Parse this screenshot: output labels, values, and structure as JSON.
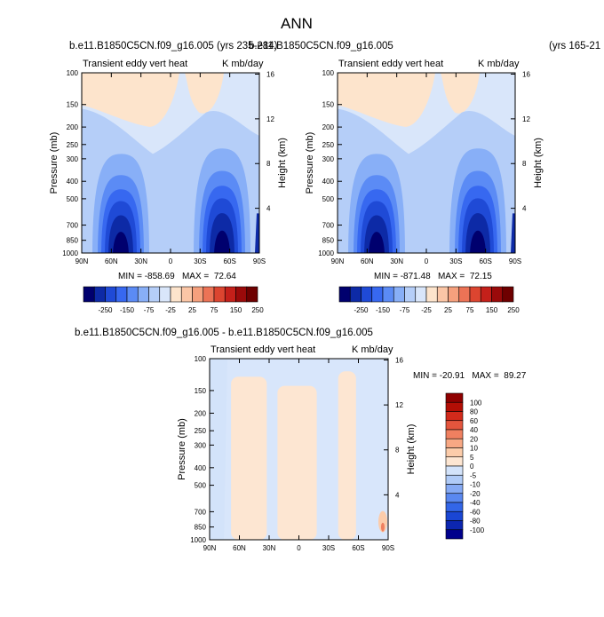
{
  "page_title": "ANN",
  "colors": {
    "main_scale": [
      "#00006e",
      "#0d2aa6",
      "#1f4ad6",
      "#3768f0",
      "#5b8bf5",
      "#88aff7",
      "#b5cef8",
      "#d9e6fa",
      "#fde4cc",
      "#fbc6a6",
      "#f5a07d",
      "#ec7356",
      "#dc4530",
      "#c4201a",
      "#9a0a0a",
      "#6e0000"
    ],
    "diff_scale": [
      "#00008c",
      "#0c26b0",
      "#1a46d4",
      "#3366e8",
      "#5a88f0",
      "#86aaf4",
      "#b0cbf7",
      "#d3e3fa",
      "#fde6d2",
      "#fcccaa",
      "#f8a884",
      "#ef8060",
      "#e4553d",
      "#d22a1b",
      "#b30e05",
      "#8f0000"
    ]
  },
  "chart_data": [
    {
      "type": "contour",
      "case_label": "b.e11.B1850C5CN.f09_g16.005 (yrs 235-284)",
      "subtitle_left": "Transient eddy vert heat",
      "subtitle_right": "K mb/day",
      "x_ticks": [
        "90N",
        "60N",
        "30N",
        "0",
        "30S",
        "60S",
        "90S"
      ],
      "y_label": "Pressure (mb)",
      "y_ticks": [
        "100",
        "150",
        "200",
        "250",
        "300",
        "400",
        "500",
        "700",
        "850",
        "1000"
      ],
      "y2_label": "Height (km)",
      "y2_ticks": [
        "16",
        "12",
        "8",
        "4"
      ],
      "min": -858.69,
      "max": 72.64,
      "min_max_text": "MIN = -858.69   MAX =  72.64",
      "colorbar_labels": [
        "-250",
        "-150",
        "-75",
        "-25",
        "25",
        "75",
        "150",
        "250"
      ]
    },
    {
      "type": "contour",
      "case_label": "b.e11.B1850C5CN.f09_g16.005",
      "case_years": "(yrs 165-21",
      "subtitle_left": "Transient eddy vert heat",
      "subtitle_right": "K mb/day",
      "x_ticks": [
        "90N",
        "60N",
        "30N",
        "0",
        "30S",
        "60S",
        "90S"
      ],
      "y_label": "Pressure (mb)",
      "y_ticks": [
        "100",
        "150",
        "200",
        "250",
        "300",
        "400",
        "500",
        "700",
        "850",
        "1000"
      ],
      "y2_label": "Height (km)",
      "y2_ticks": [
        "16",
        "12",
        "8",
        "4"
      ],
      "min": -871.48,
      "max": 72.15,
      "min_max_text": "MIN = -871.48   MAX =  72.15",
      "colorbar_labels": [
        "-250",
        "-150",
        "-75",
        "-25",
        "25",
        "75",
        "150",
        "250"
      ]
    },
    {
      "type": "contour",
      "case_label": "b.e11.B1850C5CN.f09_g16.005 - b.e11.B1850C5CN.f09_g16.005",
      "subtitle_left": "Transient eddy vert heat",
      "subtitle_right": "K mb/day",
      "x_ticks": [
        "90N",
        "60N",
        "30N",
        "0",
        "30S",
        "60S",
        "90S"
      ],
      "y_label": "Pressure (mb)",
      "y_ticks": [
        "100",
        "150",
        "200",
        "250",
        "300",
        "400",
        "500",
        "700",
        "850",
        "1000"
      ],
      "y2_label": "Height (km)",
      "y2_ticks": [
        "16",
        "12",
        "8",
        "4"
      ],
      "min": -20.91,
      "max": 89.27,
      "min_max_text": "MIN = -20.91   MAX =  89.27",
      "colorbar_labels": [
        "100",
        "80",
        "60",
        "40",
        "20",
        "10",
        "5",
        "0",
        "-5",
        "-10",
        "-20",
        "-40",
        "-60",
        "-80",
        "-100"
      ]
    }
  ]
}
